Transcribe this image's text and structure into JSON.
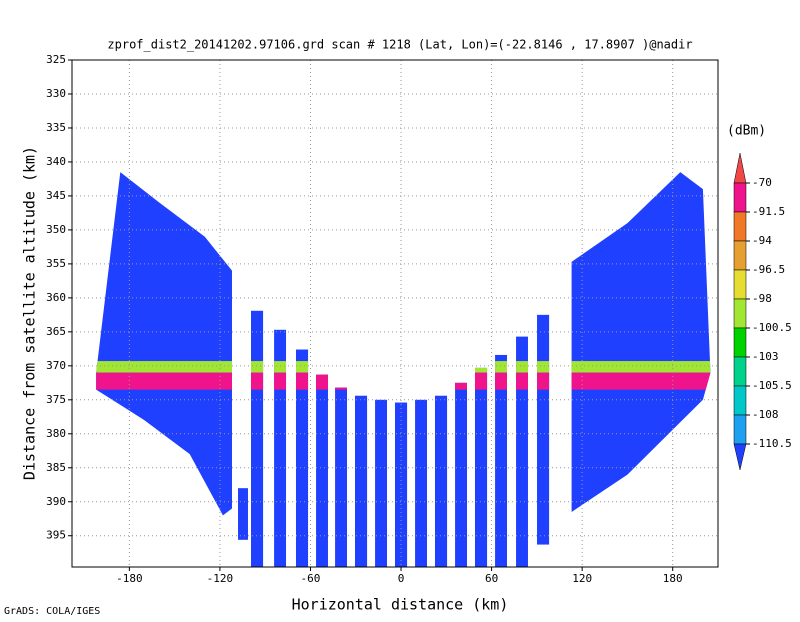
{
  "chart_data": {
    "type": "profile",
    "title": "zprof_dist2_20141202.97106.grd  scan # 1218  (Lat, Lon)=(-22.8146 , 17.8907 )@nadir",
    "x_label": "Horizontal distance (km)",
    "y_label": "Distance from satellite altitude (km)",
    "footer": "GrADS: COLA/IGES",
    "colorbar_unit": "(dBm)",
    "xlim": [
      -218,
      210
    ],
    "ylim": [
      325,
      399.6
    ],
    "y_inverted": true,
    "grid": true,
    "xticks": [
      -180,
      -120,
      -60,
      0,
      60,
      120,
      180
    ],
    "yticks": [
      325,
      330,
      335,
      340,
      345,
      350,
      355,
      360,
      365,
      370,
      375,
      380,
      385,
      390,
      395
    ],
    "levels": [
      -70,
      -91.5,
      -94,
      -96.5,
      -98,
      -100.5,
      -103,
      -105.5,
      -108,
      -110.5
    ],
    "colors": [
      "#f04848",
      "#f0148c",
      "#f07828",
      "#e6a032",
      "#e6dc32",
      "#a0e632",
      "#00d200",
      "#00d28c",
      "#00c8c8",
      "#1ea0f0",
      "#2040ff"
    ],
    "background_value": -112,
    "regions": [
      {
        "points": [
          [
            -202,
            371
          ],
          [
            -186,
            341.5
          ],
          [
            -160,
            346
          ],
          [
            -130,
            351
          ],
          [
            -112,
            356
          ],
          [
            -112,
            391
          ],
          [
            -118,
            392
          ],
          [
            -140,
            383
          ],
          [
            -170,
            378
          ],
          [
            -202,
            373.5
          ]
        ]
      },
      {
        "points": [
          [
            113,
            354.7
          ],
          [
            150,
            349
          ],
          [
            178,
            343
          ],
          [
            185,
            341.5
          ],
          [
            200,
            344
          ],
          [
            205,
            371
          ],
          [
            200,
            375
          ],
          [
            150,
            386
          ],
          [
            113,
            391.5
          ]
        ]
      }
    ],
    "columns": [
      {
        "x": [
          -108,
          -101.4
        ],
        "alt": [
          388,
          395.6
        ]
      },
      {
        "x": [
          -99.4,
          -91.4
        ],
        "alt": [
          361.9,
          399.6
        ]
      },
      {
        "x": [
          -84.1,
          -76.2
        ],
        "alt": [
          364.7,
          399.6
        ]
      },
      {
        "x": [
          -69.6,
          -61.6
        ],
        "alt": [
          367.6,
          399.6
        ]
      },
      {
        "x": [
          -56.3,
          -48.4
        ],
        "alt": [
          371.3,
          399.6
        ]
      },
      {
        "x": [
          -43.7,
          -35.8
        ],
        "alt": [
          373.2,
          399.6
        ]
      },
      {
        "x": [
          -30.5,
          -22.5
        ],
        "alt": [
          374.4,
          399.6
        ]
      },
      {
        "x": [
          -17.2,
          -9.3
        ],
        "alt": [
          375,
          399.6
        ]
      },
      {
        "x": [
          -4,
          4
        ],
        "alt": [
          375.4,
          399.6
        ]
      },
      {
        "x": [
          9.3,
          17.2
        ],
        "alt": [
          375,
          399.6
        ]
      },
      {
        "x": [
          22.5,
          30.5
        ],
        "alt": [
          374.4,
          399.6
        ]
      },
      {
        "x": [
          35.8,
          43.7
        ],
        "alt": [
          372.5,
          399.6
        ]
      },
      {
        "x": [
          49,
          57
        ],
        "alt": [
          370.3,
          399.6
        ]
      },
      {
        "x": [
          62.3,
          70.2
        ],
        "alt": [
          368.4,
          399.6
        ]
      },
      {
        "x": [
          76.2,
          84.1
        ],
        "alt": [
          365.7,
          399.6
        ]
      },
      {
        "x": [
          90.1,
          98.1
        ],
        "alt": [
          362.5,
          396.3
        ]
      }
    ],
    "layers": [
      {
        "alt": [
          369.3,
          371
        ],
        "value": -100
      },
      {
        "alt": [
          371,
          373.5
        ],
        "value": -85
      }
    ]
  }
}
